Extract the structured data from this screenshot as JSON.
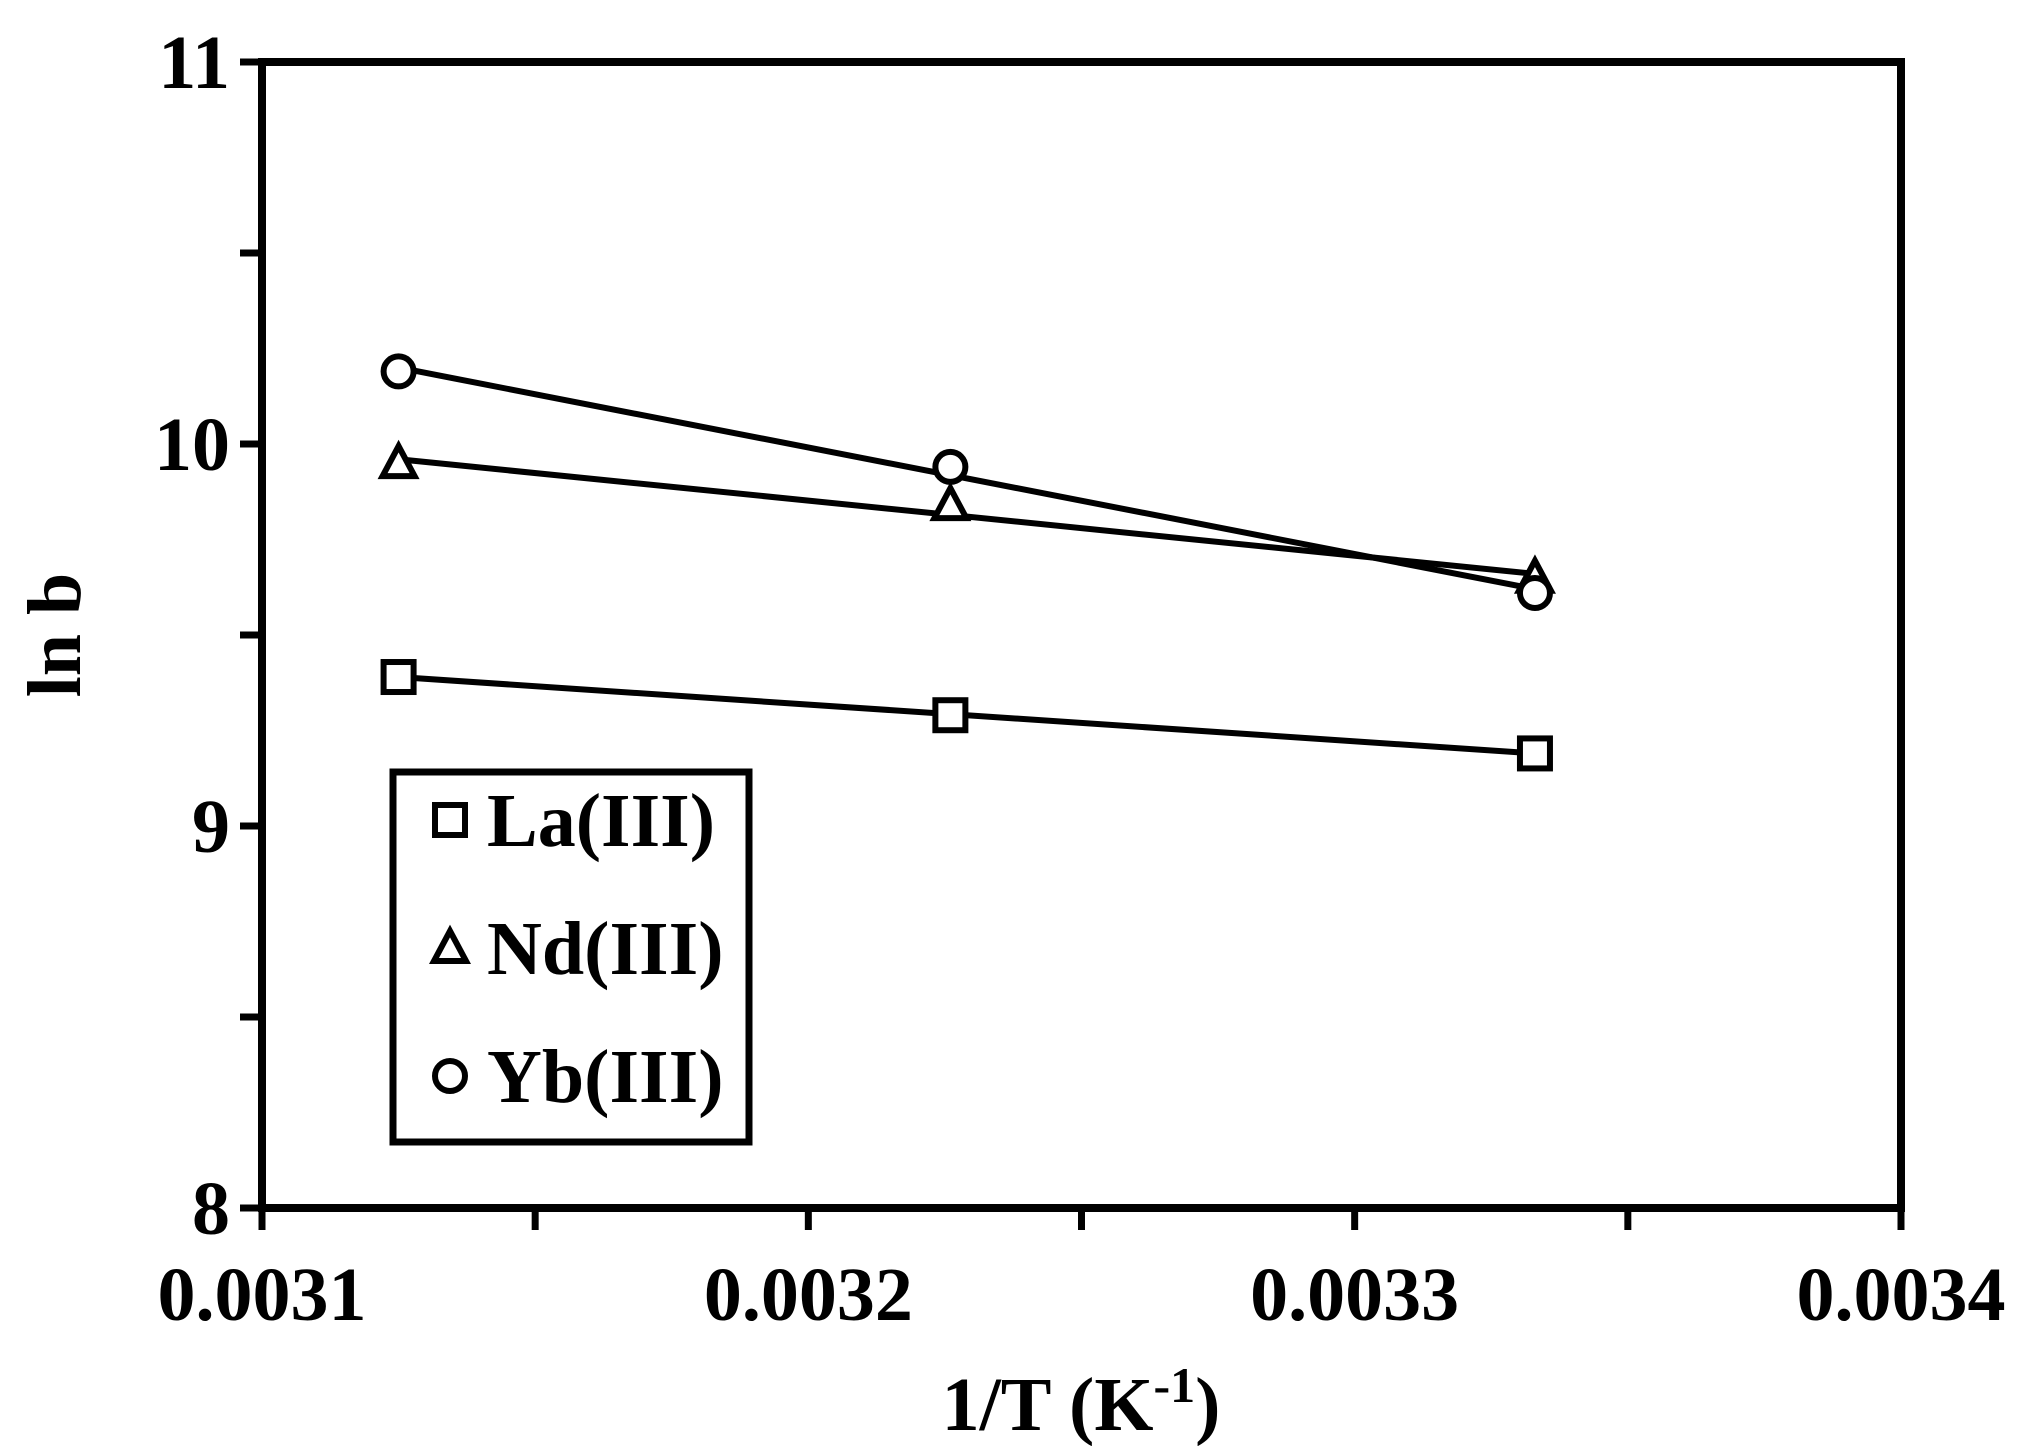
{
  "chart_data": {
    "type": "line",
    "title": "",
    "xlabel": "1/T (K",
    "xlabel_sup": "-1",
    "xlabel_end": ")",
    "ylabel": "ln b",
    "xlim": [
      0.0031,
      0.0034
    ],
    "ylim": [
      8,
      11
    ],
    "x_ticks": [
      "0.0031",
      "0.0032",
      "0.0033",
      "0.0034"
    ],
    "y_ticks": [
      "8",
      "9",
      "10",
      "11"
    ],
    "grid": false,
    "legend_position": "bottom-left",
    "series": [
      {
        "name": "La(III)",
        "marker": "square",
        "x": [
          0.003125,
          0.003226,
          0.003333
        ],
        "y": [
          9.39,
          9.29,
          9.19
        ]
      },
      {
        "name": "Nd(III)",
        "marker": "triangle",
        "x": [
          0.003125,
          0.003226,
          0.003333
        ],
        "y": [
          9.95,
          9.84,
          9.65
        ]
      },
      {
        "name": "Yb(III)",
        "marker": "circle",
        "x": [
          0.003125,
          0.003226,
          0.003333
        ],
        "y": [
          10.19,
          9.94,
          9.61
        ]
      }
    ],
    "fit_lines": [
      {
        "series": "La(III)",
        "x": [
          0.003125,
          0.003333
        ],
        "y": [
          9.39,
          9.19
        ]
      },
      {
        "series": "Nd(III)",
        "x": [
          0.003125,
          0.003333
        ],
        "y": [
          9.96,
          9.66
        ]
      },
      {
        "series": "Yb(III)",
        "x": [
          0.003125,
          0.003333
        ],
        "y": [
          10.2,
          9.62
        ]
      }
    ]
  }
}
